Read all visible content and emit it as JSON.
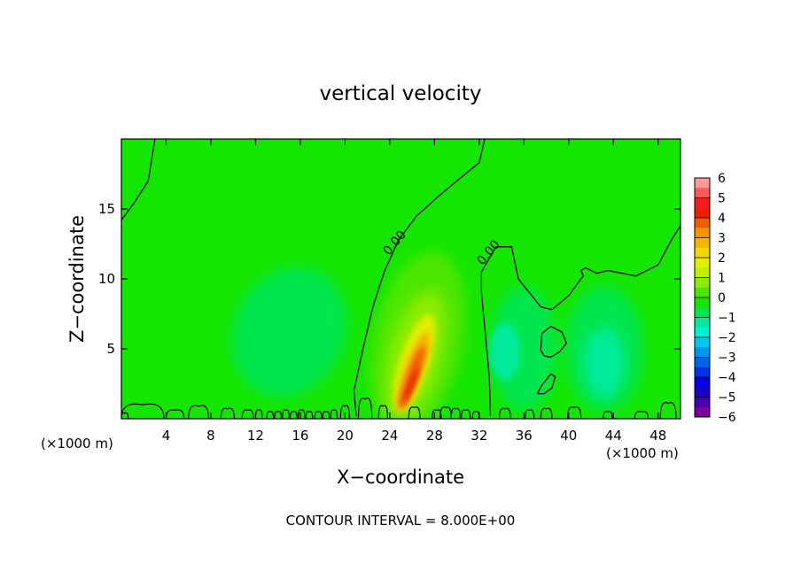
{
  "chart_data": {
    "type": "heatmap",
    "title": "vertical velocity",
    "xlabel": "X−coordinate",
    "ylabel": "Z−coordinate",
    "x_unit_left": "(×1000 m)",
    "x_unit_right": "(×1000 m)",
    "footer": "CONTOUR INTERVAL = 8.000E+00",
    "xlim": [
      0,
      50
    ],
    "ylim": [
      0,
      20
    ],
    "x_ticks": [
      4,
      8,
      12,
      16,
      20,
      24,
      28,
      32,
      36,
      40,
      44,
      48
    ],
    "y_ticks": [
      5,
      10,
      15
    ],
    "contour_labels": [
      {
        "text": "0.00",
        "x": 24.7,
        "y": 12.4
      },
      {
        "text": "0.00",
        "x": 33.1,
        "y": 11.7
      }
    ],
    "colorbar": {
      "ticks": [
        6,
        5,
        4,
        3,
        2,
        1,
        0,
        -1,
        -2,
        -3,
        -4,
        -5,
        -6
      ],
      "min": -6,
      "max": 6,
      "colors": [
        {
          "from": 5.5,
          "to": 6,
          "color": "#ff9999"
        },
        {
          "from": 5,
          "to": 5.5,
          "color": "#ff5a5a"
        },
        {
          "from": 4.5,
          "to": 5,
          "color": "#f41c1c"
        },
        {
          "from": 4,
          "to": 4.5,
          "color": "#ec2000"
        },
        {
          "from": 3.5,
          "to": 4,
          "color": "#f05a00"
        },
        {
          "from": 3,
          "to": 3.5,
          "color": "#f59200"
        },
        {
          "from": 2.5,
          "to": 3,
          "color": "#f5b400"
        },
        {
          "from": 2,
          "to": 2.5,
          "color": "#f1d800"
        },
        {
          "from": 1.5,
          "to": 2,
          "color": "#e3ef00"
        },
        {
          "from": 1,
          "to": 1.5,
          "color": "#bff000"
        },
        {
          "from": 0.5,
          "to": 1,
          "color": "#8aec00"
        },
        {
          "from": 0,
          "to": 0.5,
          "color": "#4ee600"
        },
        {
          "from": -0.5,
          "to": 0,
          "color": "#14e600"
        },
        {
          "from": -1,
          "to": -0.5,
          "color": "#00e64e"
        },
        {
          "from": -1.5,
          "to": -1,
          "color": "#00ea9c"
        },
        {
          "from": -2,
          "to": -1.5,
          "color": "#00f0d6"
        },
        {
          "from": -2.5,
          "to": -2,
          "color": "#00c8f5"
        },
        {
          "from": -3,
          "to": -2.5,
          "color": "#0096f0"
        },
        {
          "from": -3.5,
          "to": -3,
          "color": "#0064eb"
        },
        {
          "from": -4,
          "to": -3.5,
          "color": "#0032e6"
        },
        {
          "from": -4.5,
          "to": -4,
          "color": "#0000e6"
        },
        {
          "from": -5,
          "to": -4.5,
          "color": "#1a00c8"
        },
        {
          "from": -5.5,
          "to": -5,
          "color": "#4b00b4"
        },
        {
          "from": -6,
          "to": -5.5,
          "color": "#7a00a0"
        }
      ]
    },
    "field_background": "#14e600",
    "features": [
      {
        "kind": "updraft",
        "color": "#4ee600",
        "cx": 26.5,
        "cy": 5.5,
        "rx": 4.0,
        "ry": 6.5,
        "rot": 12
      },
      {
        "kind": "updraft",
        "color": "#8aec00",
        "cx": 26.3,
        "cy": 4.5,
        "rx": 2.4,
        "ry": 4.8,
        "rot": 15
      },
      {
        "kind": "updraft",
        "color": "#e3ef00",
        "cx": 26.2,
        "cy": 4.0,
        "rx": 1.3,
        "ry": 3.6,
        "rot": 18
      },
      {
        "kind": "updraft",
        "color": "#f5b400",
        "cx": 26.1,
        "cy": 3.4,
        "rx": 0.85,
        "ry": 3.0,
        "rot": 20
      },
      {
        "kind": "updraft",
        "color": "#f05a00",
        "cx": 26.0,
        "cy": 3.0,
        "rx": 0.5,
        "ry": 2.4,
        "rot": 20
      },
      {
        "kind": "updraft",
        "color": "#ec2000",
        "cx": 25.9,
        "cy": 2.4,
        "rx": 0.25,
        "ry": 1.4,
        "rot": 22
      },
      {
        "kind": "downdraft",
        "color": "#00e64e",
        "cx": 15.0,
        "cy": 6.2,
        "rx": 5.0,
        "ry": 4.8,
        "rot": 25
      },
      {
        "kind": "downdraft",
        "color": "#00e64e",
        "cx": 36.0,
        "cy": 5.0,
        "rx": 3.0,
        "ry": 4.5,
        "rot": 0
      },
      {
        "kind": "downdraft",
        "color": "#00ea9c",
        "cx": 34.3,
        "cy": 4.8,
        "rx": 1.4,
        "ry": 2.0,
        "rot": 0
      },
      {
        "kind": "downdraft",
        "color": "#00e64e",
        "cx": 43.2,
        "cy": 5.0,
        "rx": 3.5,
        "ry": 4.5,
        "rot": 0
      },
      {
        "kind": "downdraft",
        "color": "#00ea9c",
        "cx": 43.2,
        "cy": 4.0,
        "rx": 1.8,
        "ry": 2.5,
        "rot": 0
      }
    ],
    "zero_contours": [
      [
        [
          0,
          14.2
        ],
        [
          1.2,
          15.5
        ],
        [
          2.4,
          17.0
        ],
        [
          2.8,
          19.0
        ],
        [
          3.0,
          20
        ]
      ],
      [
        [
          21.0,
          0.2
        ],
        [
          20.8,
          2.0
        ],
        [
          21.6,
          5.0
        ],
        [
          22.5,
          8.0
        ],
        [
          23.5,
          10.5
        ],
        [
          24.8,
          12.8
        ],
        [
          26.4,
          14.5
        ],
        [
          28.5,
          16.0
        ],
        [
          30.6,
          17.4
        ],
        [
          32.0,
          18.3
        ],
        [
          32.5,
          20
        ]
      ],
      [
        [
          33.0,
          0.2
        ],
        [
          32.9,
          3.0
        ],
        [
          32.5,
          6.5
        ],
        [
          32.2,
          9.0
        ],
        [
          32.2,
          10.5
        ],
        [
          33.5,
          12.3
        ],
        [
          34.9,
          12.3
        ],
        [
          35.5,
          10.0
        ],
        [
          37.5,
          8.0
        ],
        [
          38.5,
          7.8
        ],
        [
          40.0,
          8.8
        ],
        [
          41.0,
          9.9
        ],
        [
          41.3,
          10.2
        ],
        [
          41.1,
          10.6
        ],
        [
          41.5,
          10.8
        ],
        [
          42.5,
          10.4
        ],
        [
          43.5,
          10.6
        ],
        [
          46.0,
          10.2
        ],
        [
          48.0,
          11.0
        ],
        [
          49.2,
          12.8
        ],
        [
          50.0,
          13.8
        ]
      ],
      [
        [
          37.5,
          4.9
        ],
        [
          37.6,
          6.1
        ],
        [
          38.4,
          6.6
        ],
        [
          39.4,
          6.2
        ],
        [
          39.8,
          5.4
        ],
        [
          39.2,
          4.8
        ],
        [
          38.4,
          4.4
        ],
        [
          37.8,
          4.5
        ],
        [
          37.5,
          4.9
        ]
      ],
      [
        [
          37.2,
          1.8
        ],
        [
          37.6,
          2.4
        ],
        [
          38.4,
          3.2
        ],
        [
          38.8,
          3.0
        ],
        [
          38.5,
          2.2
        ],
        [
          37.8,
          1.8
        ],
        [
          37.2,
          1.8
        ]
      ]
    ],
    "surface_cells": [
      [
        0.3,
        0.3,
        0.4
      ],
      [
        1.9,
        1.9,
        1.0
      ],
      [
        4.8,
        0.8,
        0.6
      ],
      [
        6.9,
        0.9,
        0.9
      ],
      [
        9.5,
        0.6,
        0.7
      ],
      [
        11.3,
        0.5,
        0.6
      ],
      [
        12.3,
        0.3,
        0.6
      ],
      [
        13.3,
        0.3,
        0.5
      ],
      [
        14.0,
        0.3,
        0.5
      ],
      [
        14.7,
        0.3,
        0.6
      ],
      [
        15.4,
        0.3,
        0.5
      ],
      [
        16.1,
        0.3,
        0.6
      ],
      [
        16.8,
        0.3,
        0.5
      ],
      [
        17.6,
        0.3,
        0.5
      ],
      [
        18.3,
        0.3,
        0.5
      ],
      [
        19.0,
        0.3,
        0.6
      ],
      [
        20.0,
        0.4,
        0.9
      ],
      [
        21.8,
        0.6,
        1.4
      ],
      [
        23.4,
        0.4,
        0.9
      ],
      [
        26.2,
        0.5,
        0.8
      ],
      [
        28.2,
        0.4,
        0.6
      ],
      [
        29.0,
        0.5,
        0.8
      ],
      [
        29.9,
        0.4,
        0.7
      ],
      [
        30.8,
        0.4,
        0.6
      ],
      [
        31.7,
        0.3,
        0.5
      ],
      [
        34.3,
        0.5,
        0.7
      ],
      [
        36.5,
        0.4,
        0.6
      ],
      [
        38.0,
        0.5,
        0.7
      ],
      [
        40.5,
        0.6,
        0.8
      ],
      [
        43.5,
        0.4,
        0.5
      ],
      [
        46.5,
        0.6,
        0.5
      ],
      [
        48.9,
        0.7,
        1.1
      ]
    ]
  }
}
